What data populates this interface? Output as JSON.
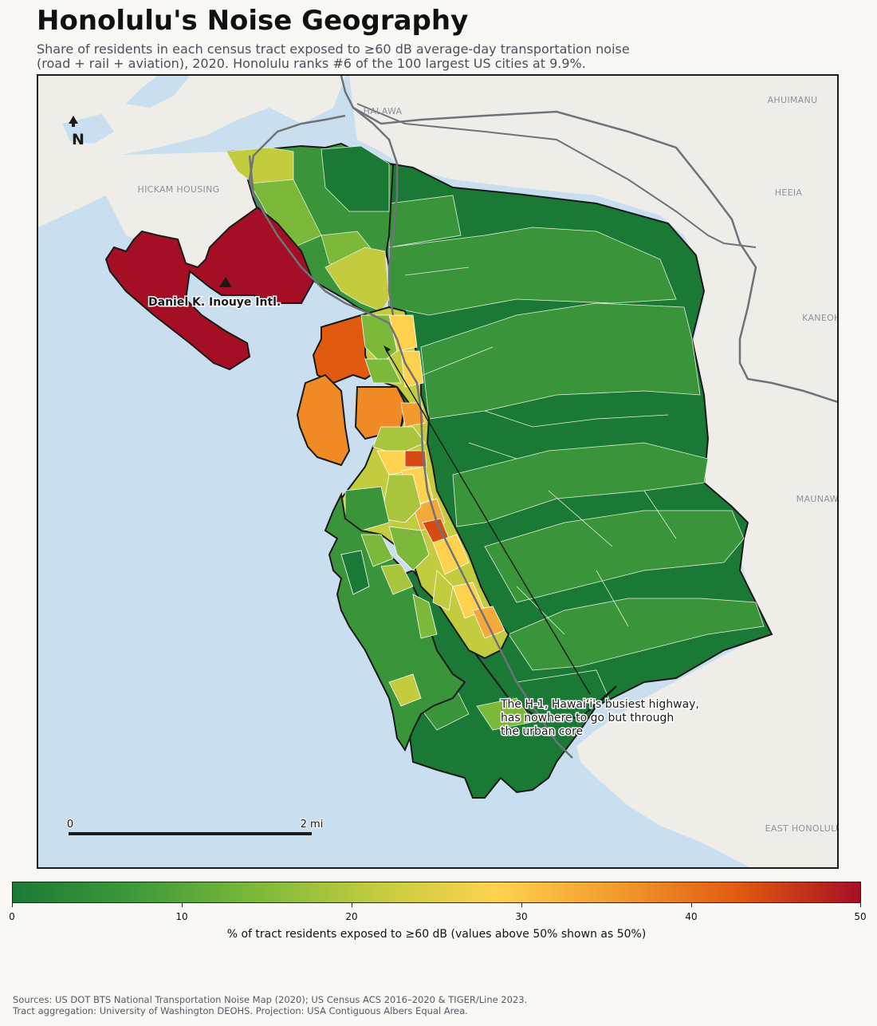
{
  "title": "Honolulu's Noise Geography",
  "subtitle": {
    "line1": "Share of residents in each census tract exposed to ≥60 dB average-day transportation noise",
    "line2": "(road + rail + aviation), 2020. Honolulu ranks #6 of the 100 largest US cities at 9.9%."
  },
  "map": {
    "places": [
      "HALAWA",
      "AHUIMANU",
      "HICKAM HOUSING",
      "HEEIA",
      "KANEOHE",
      "MAUNAWILI",
      "EAST HONOLULU"
    ],
    "airport_label": "Daniel K. Inouye Intl.",
    "annotation": [
      "The H-1, Hawaiʻi's busiest highway,",
      "has nowhere to go but through",
      "the urban core"
    ],
    "north_label": "N",
    "scale": {
      "start": "0",
      "end": "2 mi"
    },
    "colors": {
      "ocean": "#c9dff0",
      "land": "#efede7",
      "highway": "#6f7379",
      "ramp": [
        "#1a7a35",
        "#3e9a3a",
        "#7cb93a",
        "#c2cc3e",
        "#fed24f",
        "#f29a2c",
        "#e05a10",
        "#a50f25"
      ]
    }
  },
  "colorbar": {
    "ticks": [
      "0",
      "10",
      "20",
      "30",
      "40",
      "50"
    ],
    "label": "% of tract residents exposed to ≥60 dB (values above 50% shown as 50%)"
  },
  "sources": {
    "line1": "Sources: US DOT BTS National Transportation Noise Map (2020); US Census ACS 2016–2020 & TIGER/Line 2023.",
    "line2": "Tract aggregation: University of Washington DEOHS. Projection: USA Contiguous Albers Equal Area."
  }
}
